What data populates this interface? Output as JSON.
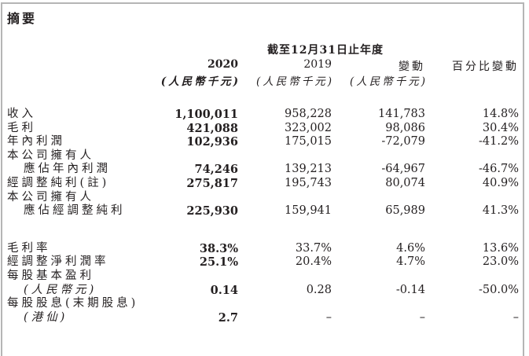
{
  "title": "摘要",
  "header": {
    "period": "截至12月31日止年度",
    "columns": [
      "2020",
      "2019",
      "變動",
      "百分比變動"
    ],
    "units": [
      "(人民幣千元)",
      "(人民幣千元)",
      "(人民幣千元)"
    ]
  },
  "rows": [
    {
      "label": "收入",
      "values": [
        "1,100,011",
        "958,228",
        "141,783",
        "14.8%"
      ]
    },
    {
      "label": "毛利",
      "values": [
        "421,088",
        "323,002",
        "98,086",
        "30.4%"
      ]
    },
    {
      "label": "年內利潤",
      "values": [
        "102,936",
        "175,015",
        "-72,079",
        "-41.2%"
      ]
    },
    {
      "label": "本公司擁有人",
      "values": [
        "",
        "",
        "",
        ""
      ]
    },
    {
      "label": "應佔年內利潤",
      "values": [
        "74,246",
        "139,213",
        "-64,967",
        "-46.7%"
      ]
    },
    {
      "label": "經調整純利(註)",
      "values": [
        "275,817",
        "195,743",
        "80,074",
        "40.9%"
      ]
    },
    {
      "label": "本公司擁有人",
      "values": [
        "",
        "",
        "",
        ""
      ]
    },
    {
      "label": "應佔經調整純利",
      "values": [
        "225,930",
        "159,941",
        "65,989",
        "41.3%"
      ]
    },
    {
      "label": "毛利率",
      "values": [
        "38.3%",
        "33.7%",
        "4.6%",
        "13.6%"
      ]
    },
    {
      "label": "經調整淨利潤率",
      "values": [
        "25.1%",
        "20.4%",
        "4.7%",
        "23.0%"
      ]
    },
    {
      "label": "每股基本盈利",
      "values": [
        "",
        "",
        "",
        ""
      ]
    },
    {
      "label": "(人民幣元)",
      "values": [
        "0.14",
        "0.28",
        "-0.14",
        "-50.0%"
      ]
    },
    {
      "label": "每股股息(末期股息)",
      "values": [
        "",
        "",
        "",
        ""
      ]
    },
    {
      "label": "(港仙)",
      "values": [
        "2.7",
        "–",
        "–",
        "–"
      ]
    }
  ]
}
